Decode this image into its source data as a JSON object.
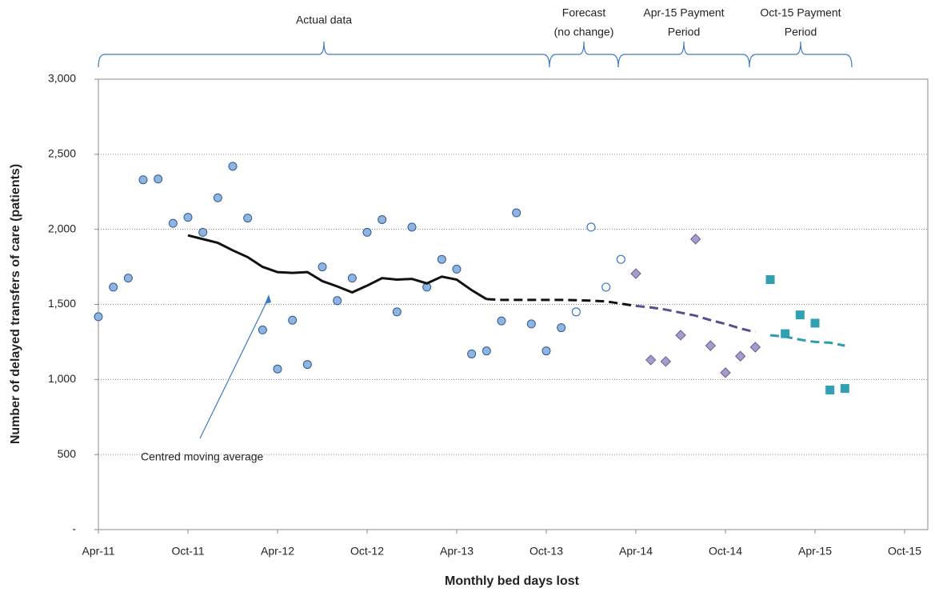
{
  "chart_data": {
    "type": "scatter",
    "xlabel": "Monthly bed days lost",
    "ylabel": "Number of delayed transfers of care (patients)",
    "xlim": [
      "Apr-11",
      "Oct-15"
    ],
    "xticks": [
      "Apr-11",
      "Oct-11",
      "Apr-12",
      "Oct-12",
      "Apr-13",
      "Oct-13",
      "Apr-14",
      "Oct-14",
      "Apr-15",
      "Oct-15"
    ],
    "ylim": [
      0,
      3000
    ],
    "yticks": [
      {
        "value": 0,
        "label": "-"
      },
      500,
      {
        "value": 1000,
        "label": "1,000"
      },
      {
        "value": 1500,
        "label": "1,500"
      },
      {
        "value": 2000,
        "label": "2,000"
      },
      {
        "value": 2500,
        "label": "2,500"
      },
      {
        "value": 3000,
        "label": "3,000"
      }
    ],
    "grid": true,
    "series": [
      {
        "marker": "circle",
        "color": "#8db4e2",
        "x": [
          "Apr-11",
          "May-11",
          "Jun-11",
          "Jul-11",
          "Aug-11",
          "Sep-11",
          "Oct-11",
          "Nov-11",
          "Dec-11",
          "Jan-12",
          "Feb-12",
          "Mar-12",
          "Apr-12",
          "May-12",
          "Jun-12",
          "Jul-12",
          "Aug-12",
          "Sep-12",
          "Oct-12",
          "Nov-12",
          "Dec-12",
          "Jan-13",
          "Feb-13",
          "Mar-13",
          "Apr-13",
          "May-13",
          "Jun-13",
          "Jul-13",
          "Aug-13",
          "Sep-13",
          "Oct-13",
          "Nov-13"
        ],
        "values": [
          1418,
          1615,
          1675,
          2330,
          2335,
          2040,
          2080,
          1980,
          2210,
          2420,
          2075,
          1330,
          1070,
          1395,
          1100,
          1750,
          1525,
          1675,
          1980,
          2065,
          1450,
          2015,
          1615,
          1800,
          1735,
          1170,
          1190,
          1390,
          2110,
          1370,
          1190,
          1345
        ]
      },
      {
        "marker": "open-circle",
        "color": "#3a78c4",
        "x": [
          "Dec-13",
          "Jan-14",
          "Feb-14",
          "Mar-14"
        ],
        "values": [
          1450,
          2015,
          1615,
          1800
        ]
      },
      {
        "marker": "diamond",
        "color": "#a99bc9",
        "x": [
          "Apr-14",
          "May-14",
          "Jun-14",
          "Jul-14",
          "Aug-14",
          "Sep-14",
          "Oct-14",
          "Nov-14",
          "Dec-14"
        ],
        "values": [
          1705,
          1130,
          1120,
          1295,
          1935,
          1225,
          1045,
          1155,
          1215
        ]
      },
      {
        "marker": "square",
        "color": "#31a0b0",
        "x": [
          "Jan-15",
          "Feb-15",
          "Mar-15",
          "Apr-15",
          "May-15",
          "Jun-15"
        ],
        "values": [
          1665,
          1305,
          1430,
          1375,
          930,
          940
        ]
      },
      {
        "marker": "line",
        "color": "#111111",
        "dash": false,
        "x": [
          "Oct-11",
          "Nov-11",
          "Dec-11",
          "Jan-12",
          "Feb-12",
          "Mar-12",
          "Apr-12",
          "May-12",
          "Jun-12",
          "Jul-12",
          "Aug-12",
          "Sep-12",
          "Oct-12",
          "Nov-12",
          "Dec-12",
          "Jan-13",
          "Feb-13",
          "Mar-13",
          "Apr-13",
          "May-13",
          "Jun-13"
        ],
        "values": [
          1960,
          1935,
          1910,
          1860,
          1815,
          1750,
          1715,
          1710,
          1715,
          1655,
          1620,
          1580,
          1625,
          1675,
          1665,
          1670,
          1640,
          1685,
          1665,
          1595,
          1535
        ]
      },
      {
        "marker": "line",
        "color": "#111111",
        "dash": true,
        "x": [
          "Jun-13",
          "Jul-13",
          "Aug-13",
          "Sep-13",
          "Oct-13",
          "Nov-13",
          "Dec-13",
          "Jan-14",
          "Feb-14",
          "Mar-14",
          "Apr-14"
        ],
        "values": [
          1535,
          1530,
          1530,
          1530,
          1530,
          1530,
          1528,
          1525,
          1520,
          1505,
          1490
        ]
      },
      {
        "marker": "line",
        "color": "#5e4a8c",
        "dash": true,
        "x": [
          "Apr-14",
          "May-14",
          "Jun-14",
          "Jul-14",
          "Aug-14",
          "Sep-14",
          "Oct-14",
          "Nov-14",
          "Dec-14"
        ],
        "values": [
          1490,
          1480,
          1465,
          1445,
          1425,
          1395,
          1370,
          1340,
          1315
        ]
      },
      {
        "marker": "line",
        "color": "#2e9cae",
        "dash": true,
        "x": [
          "Jan-15",
          "Feb-15",
          "Mar-15",
          "Apr-15",
          "May-15",
          "Jun-15"
        ],
        "values": [
          1295,
          1285,
          1265,
          1250,
          1245,
          1225
        ]
      }
    ],
    "annotations": [
      {
        "text": [
          "Actual data"
        ]
      },
      {
        "text": [
          "Forecast",
          "(no change)"
        ]
      },
      {
        "text": [
          "Apr-15 Payment",
          "Period"
        ]
      },
      {
        "text": [
          "Oct-15 Payment",
          "Period"
        ]
      },
      {
        "text": [
          "Centred moving average"
        ]
      }
    ]
  }
}
